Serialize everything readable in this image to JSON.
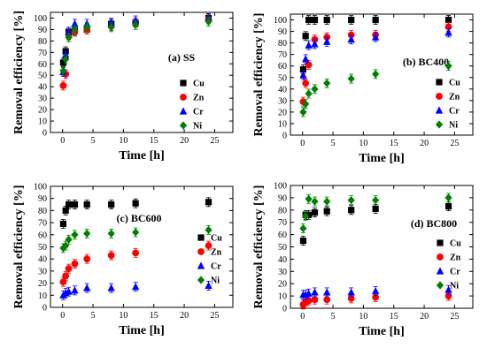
{
  "chart_data": [
    {
      "type": "scatter",
      "title": "(a) SS",
      "xlabel": "Time [h]",
      "ylabel": "Removal efficiency [%]",
      "xlim": [
        -2,
        28
      ],
      "ylim": [
        0,
        105
      ],
      "xticks": [
        0,
        5,
        10,
        15,
        20,
        25
      ],
      "yticks": [
        0,
        10,
        20,
        30,
        40,
        50,
        60,
        70,
        80,
        90,
        100
      ],
      "legend_position": "right-middle",
      "series": [
        {
          "name": "Cu",
          "color": "#000000",
          "marker": "square",
          "points": [
            [
              0.1,
              61
            ],
            [
              0.5,
              71
            ],
            [
              1,
              88
            ],
            [
              2,
              89
            ],
            [
              4,
              90
            ],
            [
              8,
              95
            ],
            [
              12,
              96
            ],
            [
              24,
              100
            ]
          ]
        },
        {
          "name": "Zn",
          "color": "#ff0000",
          "marker": "circle",
          "points": [
            [
              0.1,
              41
            ],
            [
              0.5,
              51
            ],
            [
              1,
              85
            ],
            [
              2,
              88
            ],
            [
              4,
              90
            ],
            [
              8,
              93
            ],
            [
              12,
              96
            ],
            [
              24,
              99
            ]
          ]
        },
        {
          "name": "Cr",
          "color": "#0000ff",
          "marker": "triangle",
          "points": [
            [
              0.1,
              53
            ],
            [
              0.5,
              68
            ],
            [
              1,
              88
            ],
            [
              2,
              95
            ],
            [
              4,
              95
            ],
            [
              8,
              96
            ],
            [
              12,
              98
            ],
            [
              24,
              100
            ]
          ]
        },
        {
          "name": "Ni",
          "color": "#008000",
          "marker": "diamond",
          "points": [
            [
              0.1,
              54
            ],
            [
              0.5,
              64
            ],
            [
              1,
              83
            ],
            [
              2,
              90
            ],
            [
              4,
              92
            ],
            [
              8,
              92
            ],
            [
              12,
              94
            ],
            [
              24,
              97
            ]
          ]
        }
      ]
    },
    {
      "type": "scatter",
      "title": "(b) BC400",
      "xlabel": "Time [h]",
      "ylabel": "Removal efficiency [%]",
      "xlim": [
        -2,
        28
      ],
      "ylim": [
        0,
        105
      ],
      "xticks": [
        0,
        5,
        10,
        15,
        20,
        25
      ],
      "yticks": [
        0,
        10,
        20,
        30,
        40,
        50,
        60,
        70,
        80,
        90,
        100
      ],
      "legend_position": "right-middle",
      "series": [
        {
          "name": "Cu",
          "color": "#000000",
          "marker": "square",
          "points": [
            [
              0.1,
              57
            ],
            [
              0.5,
              86
            ],
            [
              1,
              100
            ],
            [
              2,
              100
            ],
            [
              4,
              100
            ],
            [
              8,
              100
            ],
            [
              12,
              100
            ],
            [
              24,
              100
            ]
          ]
        },
        {
          "name": "Zn",
          "color": "#ff0000",
          "marker": "circle",
          "points": [
            [
              0.1,
              29
            ],
            [
              0.5,
              45
            ],
            [
              1,
              61
            ],
            [
              2,
              83
            ],
            [
              4,
              85
            ],
            [
              8,
              87
            ],
            [
              12,
              87
            ],
            [
              24,
              94
            ]
          ]
        },
        {
          "name": "Cr",
          "color": "#0000ff",
          "marker": "triangle",
          "points": [
            [
              0.1,
              52
            ],
            [
              0.5,
              66
            ],
            [
              1,
              78
            ],
            [
              2,
              79
            ],
            [
              4,
              81
            ],
            [
              8,
              83
            ],
            [
              12,
              85
            ],
            [
              24,
              89
            ]
          ]
        },
        {
          "name": "Ni",
          "color": "#008000",
          "marker": "diamond",
          "points": [
            [
              0.1,
              20
            ],
            [
              0.5,
              27
            ],
            [
              1,
              36
            ],
            [
              2,
              40
            ],
            [
              4,
              45
            ],
            [
              8,
              49
            ],
            [
              12,
              53
            ],
            [
              24,
              60
            ]
          ]
        }
      ]
    },
    {
      "type": "scatter",
      "title": "(c) BC600",
      "xlabel": "Time [h]",
      "ylabel": "Removal efficiency [%]",
      "xlim": [
        -2,
        28
      ],
      "ylim": [
        0,
        100
      ],
      "xticks": [
        0,
        5,
        10,
        15,
        20,
        25
      ],
      "yticks": [
        0,
        10,
        20,
        30,
        40,
        50,
        60,
        70,
        80,
        90,
        100
      ],
      "legend_position": "right-middle",
      "series": [
        {
          "name": "Cu",
          "color": "#000000",
          "marker": "square",
          "points": [
            [
              0.1,
              69
            ],
            [
              0.5,
              80
            ],
            [
              1,
              85
            ],
            [
              2,
              85
            ],
            [
              4,
              85
            ],
            [
              8,
              85
            ],
            [
              12,
              86
            ],
            [
              24,
              87
            ]
          ]
        },
        {
          "name": "Zn",
          "color": "#ff0000",
          "marker": "circle",
          "points": [
            [
              0.1,
              21
            ],
            [
              0.5,
              26
            ],
            [
              1,
              32
            ],
            [
              2,
              36
            ],
            [
              4,
              40
            ],
            [
              8,
              43
            ],
            [
              12,
              45
            ],
            [
              24,
              51
            ]
          ]
        },
        {
          "name": "Cr",
          "color": "#0000ff",
          "marker": "triangle",
          "points": [
            [
              0.1,
              10
            ],
            [
              0.5,
              12
            ],
            [
              1,
              13
            ],
            [
              2,
              14
            ],
            [
              4,
              16
            ],
            [
              8,
              16
            ],
            [
              12,
              17
            ],
            [
              24,
              18
            ]
          ]
        },
        {
          "name": "Ni",
          "color": "#008000",
          "marker": "diamond",
          "points": [
            [
              0.1,
              49
            ],
            [
              0.5,
              51
            ],
            [
              1,
              56
            ],
            [
              2,
              60
            ],
            [
              4,
              61
            ],
            [
              8,
              61
            ],
            [
              12,
              62
            ],
            [
              24,
              64
            ]
          ]
        }
      ]
    },
    {
      "type": "scatter",
      "title": "(d) BC800",
      "xlabel": "Time [h]",
      "ylabel": "Removal efficiency [%]",
      "xlim": [
        -2,
        28
      ],
      "ylim": [
        0,
        100
      ],
      "xticks": [
        0,
        5,
        10,
        15,
        20,
        25
      ],
      "yticks": [
        0,
        10,
        20,
        30,
        40,
        50,
        60,
        70,
        80,
        90,
        100
      ],
      "legend_position": "right-middle",
      "series": [
        {
          "name": "Cu",
          "color": "#000000",
          "marker": "square",
          "points": [
            [
              0.1,
              55
            ],
            [
              0.5,
              76
            ],
            [
              1,
              76
            ],
            [
              2,
              78
            ],
            [
              4,
              79
            ],
            [
              8,
              80
            ],
            [
              12,
              81
            ],
            [
              24,
              83
            ]
          ]
        },
        {
          "name": "Zn",
          "color": "#ff0000",
          "marker": "circle",
          "points": [
            [
              0.1,
              3
            ],
            [
              0.5,
              5
            ],
            [
              1,
              6
            ],
            [
              2,
              7
            ],
            [
              4,
              7
            ],
            [
              8,
              8
            ],
            [
              12,
              9
            ],
            [
              24,
              10
            ]
          ]
        },
        {
          "name": "Cr",
          "color": "#0000ff",
          "marker": "triangle",
          "points": [
            [
              0.1,
              11
            ],
            [
              0.5,
              11
            ],
            [
              1,
              12
            ],
            [
              2,
              13
            ],
            [
              4,
              13
            ],
            [
              8,
              13
            ],
            [
              12,
              14
            ],
            [
              24,
              15
            ]
          ]
        },
        {
          "name": "Ni",
          "color": "#008000",
          "marker": "diamond",
          "points": [
            [
              0.1,
              65
            ],
            [
              0.5,
              75
            ],
            [
              1,
              89
            ],
            [
              2,
              87
            ],
            [
              4,
              87
            ],
            [
              8,
              88
            ],
            [
              12,
              88
            ],
            [
              24,
              90
            ]
          ]
        }
      ]
    }
  ]
}
